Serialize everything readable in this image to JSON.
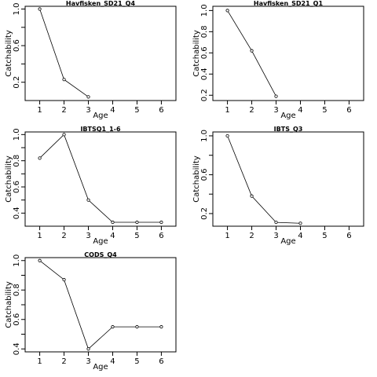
{
  "chart_data": [
    {
      "type": "line",
      "title": "Havfisken_SD21_Q4",
      "xlabel": "Age",
      "ylabel": "Catchability",
      "x": [
        1,
        2,
        3
      ],
      "y": [
        1.0,
        0.23,
        0.04
      ],
      "xlim": [
        0.4,
        6.6
      ],
      "ylim": [
        0.0,
        1.03
      ],
      "xticks": [
        1,
        2,
        3,
        4,
        5,
        6
      ],
      "yticks": [
        0.2,
        0.6,
        1.0
      ],
      "yminor": [
        0.4,
        0.8
      ],
      "grid": false,
      "legend": "none"
    },
    {
      "type": "line",
      "title": "Havfisken_SD21_Q1",
      "xlabel": "Age",
      "ylabel": "Catchability",
      "x": [
        1,
        2,
        3
      ],
      "y": [
        1.0,
        0.62,
        0.19
      ],
      "xlim": [
        0.4,
        6.6
      ],
      "ylim": [
        0.15,
        1.04
      ],
      "xticks": [
        1,
        2,
        3,
        4,
        5,
        6
      ],
      "yticks": [
        0.2,
        0.4,
        0.6,
        0.8,
        1.0
      ],
      "yminor": [],
      "grid": false,
      "legend": "none"
    },
    {
      "type": "line",
      "title": "IBTSQ1_1-6",
      "xlabel": "Age",
      "ylabel": "Catchability",
      "x": [
        1,
        2,
        3,
        4,
        5,
        6
      ],
      "y": [
        0.82,
        1.0,
        0.5,
        0.33,
        0.33,
        0.33
      ],
      "xlim": [
        0.4,
        6.6
      ],
      "ylim": [
        0.3,
        1.02
      ],
      "xticks": [
        1,
        2,
        3,
        4,
        5,
        6
      ],
      "yticks": [
        0.4,
        0.6,
        0.8,
        1.0
      ],
      "yminor": [
        0.5,
        0.7,
        0.9
      ],
      "grid": false,
      "legend": "none"
    },
    {
      "type": "line",
      "title": "IBTS_Q3",
      "xlabel": "Age",
      "ylabel": "Catchability",
      "x": [
        1,
        2,
        3,
        4
      ],
      "y": [
        1.0,
        0.38,
        0.11,
        0.1
      ],
      "xlim": [
        0.4,
        6.6
      ],
      "ylim": [
        0.07,
        1.04
      ],
      "xticks": [
        1,
        2,
        3,
        4,
        5,
        6
      ],
      "yticks": [
        0.2,
        0.6,
        1.0
      ],
      "yminor": [
        0.4,
        0.8
      ],
      "grid": false,
      "legend": "none"
    },
    {
      "type": "line",
      "title": "CODS_Q4",
      "xlabel": "Age",
      "ylabel": "Catchability",
      "x": [
        1,
        2,
        3,
        4,
        5,
        6
      ],
      "y": [
        1.0,
        0.87,
        0.4,
        0.55,
        0.55,
        0.55
      ],
      "xlim": [
        0.4,
        6.6
      ],
      "ylim": [
        0.38,
        1.02
      ],
      "xticks": [
        1,
        2,
        3,
        4,
        5,
        6
      ],
      "yticks": [
        0.4,
        0.6,
        0.8,
        1.0
      ],
      "yminor": [
        0.5,
        0.7,
        0.9
      ],
      "grid": false,
      "legend": "none"
    }
  ]
}
